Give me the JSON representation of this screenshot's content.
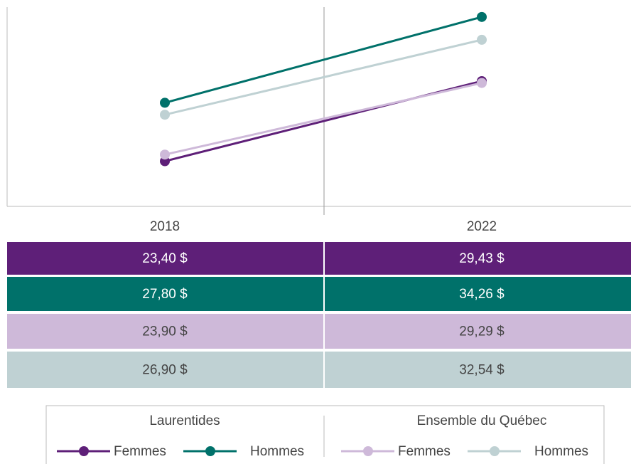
{
  "chart_data": {
    "type": "line",
    "categories": [
      "2018",
      "2022"
    ],
    "ylim": [
      20,
      35
    ],
    "series": [
      {
        "name": "Femmes",
        "group": "Laurentides",
        "color": "#5e1f78",
        "label_color": "#ffffff",
        "values": [
          23.4,
          29.43
        ],
        "value_labels": [
          "23,40 $",
          "29,43 $"
        ]
      },
      {
        "name": "Hommes",
        "group": "Laurentides",
        "color": "#00716a",
        "label_color": "#ffffff",
        "values": [
          27.8,
          34.26
        ],
        "value_labels": [
          "27,80 $",
          "34,26 $"
        ]
      },
      {
        "name": "Femmes",
        "group": "Ensemble du Québec",
        "color": "#ceb9d9",
        "label_color": "#444444",
        "values": [
          23.9,
          29.29
        ],
        "value_labels": [
          "23,90 $",
          "29,29 $"
        ]
      },
      {
        "name": "Hommes",
        "group": "Ensemble du Québec",
        "color": "#bfd1d3",
        "label_color": "#444444",
        "values": [
          26.9,
          32.54
        ],
        "value_labels": [
          "26,90 $",
          "32,54 $"
        ]
      }
    ]
  }
}
